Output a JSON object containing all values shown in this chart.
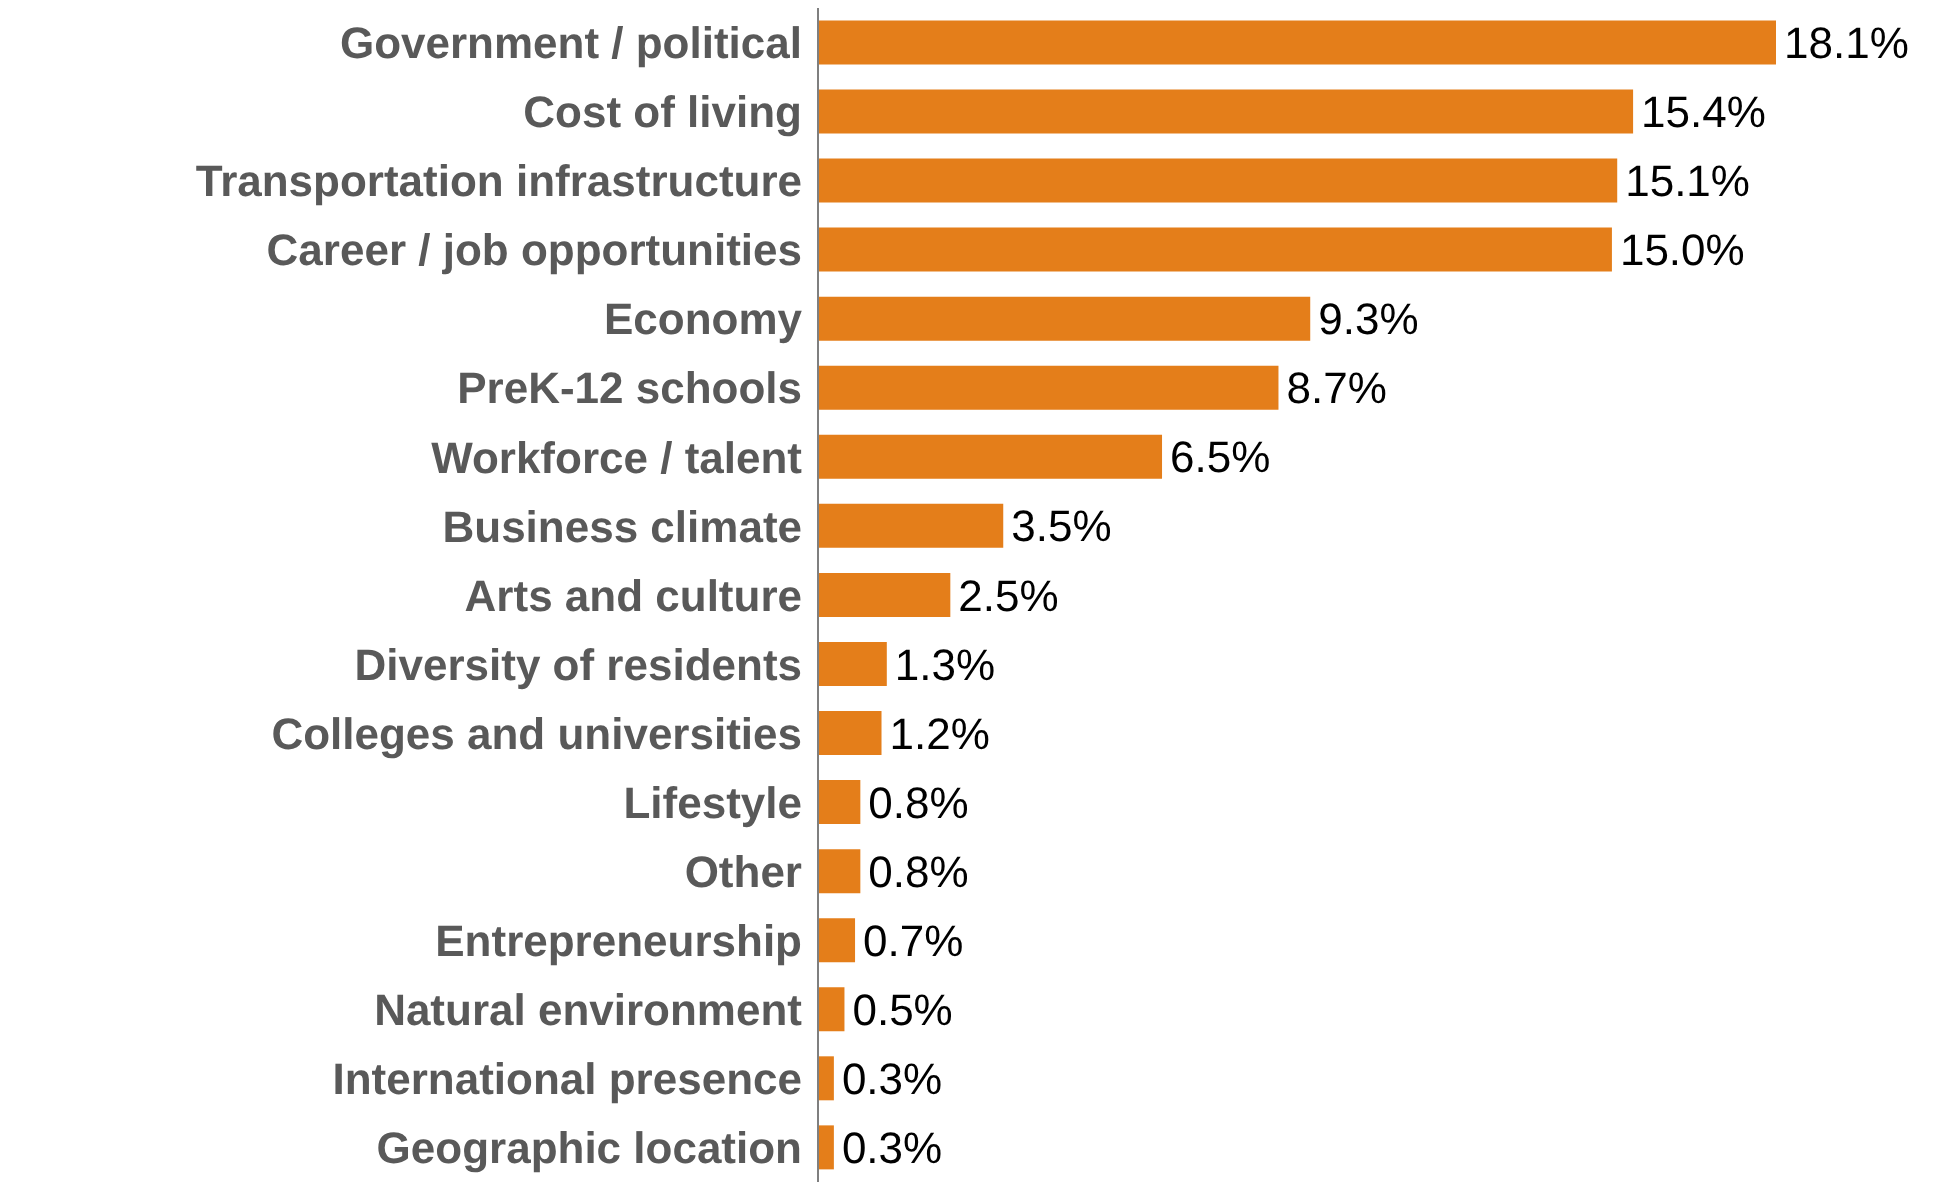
{
  "chart_data": {
    "type": "bar",
    "orientation": "horizontal",
    "categories": [
      "Government / political",
      "Cost of living",
      "Transportation infrastructure",
      "Career / job opportunities",
      "Economy",
      "PreK-12 schools",
      "Workforce / talent",
      "Business climate",
      "Arts and culture",
      "Diversity of residents",
      "Colleges and universities",
      "Lifestyle",
      "Other",
      "Entrepreneurship",
      "Natural environment",
      "International presence",
      "Geographic location"
    ],
    "values": [
      18.1,
      15.4,
      15.1,
      15.0,
      9.3,
      8.7,
      6.5,
      3.5,
      2.5,
      1.3,
      1.2,
      0.8,
      0.8,
      0.7,
      0.5,
      0.3,
      0.3
    ],
    "value_labels": [
      "18.1%",
      "15.4%",
      "15.1%",
      "15.0%",
      "9.3%",
      "8.7%",
      "6.5%",
      "3.5%",
      "2.5%",
      "1.3%",
      "1.2%",
      "0.8%",
      "0.8%",
      "0.7%",
      "0.5%",
      "0.3%",
      "0.3%"
    ],
    "color": "#e47e1a",
    "grid": false,
    "legend": false
  }
}
